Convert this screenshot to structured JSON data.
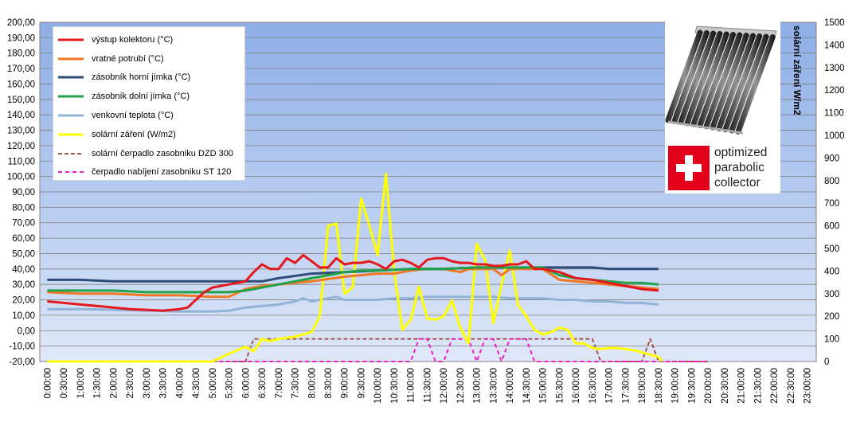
{
  "chart_data": {
    "type": "line",
    "y_axis_left": {
      "ylim": [
        -20,
        200
      ],
      "tick_labels": [
        "200,00",
        "190,00",
        "180,00",
        "170,00",
        "160,00",
        "150,00",
        "140,00",
        "130,00",
        "120,00",
        "110,00",
        "100,00",
        "90,00",
        "80,00",
        "70,00",
        "60,00",
        "50,00",
        "40,00",
        "30,00",
        "20,00",
        "10,00",
        "0,00",
        "-10,00",
        "-20,00"
      ]
    },
    "y_axis_right": {
      "ylabel": "solární záření W/m2",
      "ylim": [
        0,
        1500
      ],
      "tick_labels": [
        "1500",
        "1400",
        "1300",
        "1200",
        "1100",
        "1000",
        "900",
        "800",
        "700",
        "600",
        "500",
        "400",
        "300",
        "200",
        "100",
        "0"
      ]
    },
    "x_tick_labels": [
      "0:00:00",
      "0:30:00",
      "1:00:00",
      "1:30:00",
      "2:00:00",
      "2:30:00",
      "3:00:00",
      "3:30:00",
      "4:00:00",
      "4:30:00",
      "5:00:00",
      "5:30:00",
      "6:00:00",
      "6:30:00",
      "7:00:00",
      "7:30:00",
      "8:00:00",
      "8:30:00",
      "9:00:00",
      "9:30:00",
      "10:00:00",
      "10:30:00",
      "11:00:00",
      "11:30:00",
      "12:00:00",
      "12:30:00",
      "13:00:00",
      "13:30:00",
      "14:00:00",
      "14:30:00",
      "15:00:00",
      "15:30:00",
      "16:00:00",
      "16:30:00",
      "17:00:00",
      "17:30:00",
      "18:00:00",
      "18:30:00",
      "19:00:00",
      "19:30:00",
      "20:00:00",
      "20:30:00",
      "21:00:00",
      "21:30:00",
      "22:00:00",
      "22:30:00",
      "23:00:00"
    ],
    "grid": true,
    "legend_position": "top-left",
    "plot_background": "light-blue-gradient",
    "series": [
      {
        "name": "výstup kolektoru (°C)",
        "axis": "left",
        "color": "#e3181c",
        "dash": "solid",
        "points": [
          [
            0,
            19
          ],
          [
            1,
            18
          ],
          [
            2,
            17
          ],
          [
            3,
            16
          ],
          [
            4,
            15
          ],
          [
            5,
            14
          ],
          [
            6,
            13.5
          ],
          [
            7,
            13
          ],
          [
            8,
            14
          ],
          [
            8.5,
            15
          ],
          [
            9,
            20
          ],
          [
            9.5,
            25
          ],
          [
            10,
            28
          ],
          [
            11,
            30
          ],
          [
            12,
            32
          ],
          [
            12.5,
            38
          ],
          [
            13,
            43
          ],
          [
            13.5,
            40
          ],
          [
            14,
            40
          ],
          [
            14.5,
            47
          ],
          [
            15,
            44
          ],
          [
            15.5,
            49
          ],
          [
            16,
            45
          ],
          [
            16.5,
            41
          ],
          [
            17,
            41
          ],
          [
            17.5,
            47
          ],
          [
            18,
            43
          ],
          [
            18.5,
            44
          ],
          [
            19,
            44
          ],
          [
            19.5,
            45
          ],
          [
            20,
            43
          ],
          [
            20.5,
            40
          ],
          [
            21,
            45
          ],
          [
            21.5,
            46
          ],
          [
            22,
            44
          ],
          [
            22.5,
            41
          ],
          [
            23,
            46
          ],
          [
            23.5,
            47
          ],
          [
            24,
            47
          ],
          [
            24.5,
            45
          ],
          [
            25,
            44
          ],
          [
            25.5,
            44
          ],
          [
            26,
            43
          ],
          [
            26.5,
            43
          ],
          [
            27,
            42
          ],
          [
            27.5,
            42
          ],
          [
            28,
            43
          ],
          [
            28.5,
            43
          ],
          [
            29,
            45
          ],
          [
            29.5,
            40
          ],
          [
            30,
            40
          ],
          [
            31,
            38
          ],
          [
            32,
            34
          ],
          [
            33,
            33
          ],
          [
            34,
            31
          ],
          [
            35,
            29
          ],
          [
            36,
            27
          ],
          [
            37,
            26
          ]
        ]
      },
      {
        "name": "vratné potrubí (°C)",
        "axis": "left",
        "color": "#f07822",
        "dash": "solid",
        "points": [
          [
            0,
            25
          ],
          [
            2,
            24
          ],
          [
            4,
            24
          ],
          [
            6,
            23
          ],
          [
            8,
            23
          ],
          [
            10,
            22
          ],
          [
            11,
            22
          ],
          [
            12,
            27
          ],
          [
            13,
            29
          ],
          [
            14,
            30
          ],
          [
            16,
            32
          ],
          [
            18,
            35
          ],
          [
            20,
            37
          ],
          [
            21,
            37
          ],
          [
            22,
            39
          ],
          [
            23,
            40
          ],
          [
            24,
            40
          ],
          [
            25,
            38
          ],
          [
            25.5,
            40
          ],
          [
            26,
            40
          ],
          [
            27,
            40
          ],
          [
            27.5,
            36
          ],
          [
            28,
            40
          ],
          [
            29,
            40
          ],
          [
            30,
            40
          ],
          [
            31,
            33
          ],
          [
            32,
            32
          ],
          [
            33,
            31
          ],
          [
            34,
            30
          ],
          [
            35,
            29
          ],
          [
            36,
            28
          ],
          [
            37,
            27
          ]
        ]
      },
      {
        "name": "zásobník horní jímka (°C)",
        "axis": "left",
        "color": "#2e4c78",
        "dash": "solid",
        "points": [
          [
            0,
            33
          ],
          [
            2,
            33
          ],
          [
            4,
            32
          ],
          [
            6,
            32
          ],
          [
            8,
            32
          ],
          [
            10,
            32
          ],
          [
            11,
            32
          ],
          [
            12,
            32
          ],
          [
            13,
            32
          ],
          [
            14,
            34
          ],
          [
            16,
            37
          ],
          [
            18,
            38
          ],
          [
            20,
            39
          ],
          [
            22,
            40
          ],
          [
            24,
            40
          ],
          [
            26,
            41
          ],
          [
            28,
            41
          ],
          [
            30,
            41
          ],
          [
            32,
            41
          ],
          [
            33,
            41
          ],
          [
            34,
            40
          ],
          [
            35,
            40
          ],
          [
            36,
            40
          ],
          [
            37,
            40
          ]
        ]
      },
      {
        "name": "zásobník dolní jímka (°C)",
        "axis": "left",
        "color": "#21a24a",
        "dash": "solid",
        "points": [
          [
            0,
            26
          ],
          [
            2,
            26
          ],
          [
            4,
            26
          ],
          [
            6,
            25
          ],
          [
            8,
            25
          ],
          [
            10,
            25
          ],
          [
            11,
            25
          ],
          [
            12,
            26
          ],
          [
            13,
            28
          ],
          [
            14,
            30
          ],
          [
            15,
            32
          ],
          [
            16,
            34
          ],
          [
            17,
            36
          ],
          [
            18,
            38
          ],
          [
            19,
            39
          ],
          [
            20,
            39
          ],
          [
            22,
            40
          ],
          [
            24,
            40
          ],
          [
            26,
            41
          ],
          [
            28,
            41
          ],
          [
            30,
            41
          ],
          [
            31,
            36
          ],
          [
            32,
            34
          ],
          [
            33,
            33
          ],
          [
            34,
            32
          ],
          [
            35,
            31
          ],
          [
            36,
            31
          ],
          [
            37,
            30
          ]
        ]
      },
      {
        "name": "venkovní teplota (°C)",
        "axis": "left",
        "color": "#91b3d7",
        "dash": "solid",
        "points": [
          [
            0,
            14
          ],
          [
            2,
            14
          ],
          [
            4,
            13.5
          ],
          [
            6,
            13
          ],
          [
            8,
            12.5
          ],
          [
            10,
            12.5
          ],
          [
            11,
            13
          ],
          [
            12,
            15
          ],
          [
            13,
            16
          ],
          [
            14,
            17
          ],
          [
            15,
            19
          ],
          [
            15.5,
            21
          ],
          [
            16,
            19
          ],
          [
            17,
            21
          ],
          [
            17.5,
            22
          ],
          [
            18,
            20
          ],
          [
            19,
            20
          ],
          [
            20,
            20
          ],
          [
            21,
            21
          ],
          [
            22,
            21
          ],
          [
            23,
            22
          ],
          [
            24,
            22
          ],
          [
            25,
            22
          ],
          [
            26,
            22
          ],
          [
            27,
            22
          ],
          [
            28,
            21
          ],
          [
            29,
            21
          ],
          [
            30,
            21
          ],
          [
            31,
            20
          ],
          [
            32,
            20
          ],
          [
            33,
            19
          ],
          [
            34,
            19
          ],
          [
            35,
            18
          ],
          [
            36,
            18
          ],
          [
            37,
            17
          ]
        ]
      },
      {
        "name": "solární záření (W/m2)",
        "axis": "right",
        "color": "#ffff00",
        "dash": "solid",
        "points": [
          [
            0,
            0
          ],
          [
            10,
            0
          ],
          [
            11,
            35
          ],
          [
            12,
            65
          ],
          [
            12.5,
            45
          ],
          [
            13,
            100
          ],
          [
            13.5,
            90
          ],
          [
            14,
            100
          ],
          [
            15,
            110
          ],
          [
            16,
            130
          ],
          [
            16.5,
            200
          ],
          [
            17,
            600
          ],
          [
            17.5,
            610
          ],
          [
            18,
            300
          ],
          [
            18.5,
            330
          ],
          [
            19,
            720
          ],
          [
            19.5,
            600
          ],
          [
            20,
            470
          ],
          [
            20.5,
            830
          ],
          [
            21,
            400
          ],
          [
            21.5,
            140
          ],
          [
            22,
            185
          ],
          [
            22.5,
            330
          ],
          [
            23,
            190
          ],
          [
            23.5,
            185
          ],
          [
            24,
            200
          ],
          [
            24.5,
            270
          ],
          [
            25,
            150
          ],
          [
            25.5,
            80
          ],
          [
            26,
            520
          ],
          [
            26.5,
            450
          ],
          [
            27,
            170
          ],
          [
            27.5,
            340
          ],
          [
            28,
            490
          ],
          [
            28.5,
            250
          ],
          [
            29,
            200
          ],
          [
            29.5,
            140
          ],
          [
            30,
            120
          ],
          [
            30.5,
            130
          ],
          [
            31,
            150
          ],
          [
            31.5,
            140
          ],
          [
            32,
            80
          ],
          [
            32.5,
            80
          ],
          [
            33,
            60
          ],
          [
            33.5,
            55
          ],
          [
            34,
            60
          ],
          [
            34.5,
            60
          ],
          [
            35,
            55
          ],
          [
            35.5,
            50
          ],
          [
            36,
            40
          ],
          [
            36.5,
            30
          ],
          [
            37,
            20
          ],
          [
            37.2,
            0
          ]
        ]
      },
      {
        "name": "solární čerpadlo zasobniku  DZD 300",
        "axis": "right",
        "color": "#a0524d",
        "dash": "5,3",
        "points": [
          [
            0,
            0
          ],
          [
            12,
            0
          ],
          [
            12.5,
            100
          ],
          [
            33,
            100
          ],
          [
            33.5,
            0
          ],
          [
            36,
            0
          ],
          [
            36.5,
            100
          ],
          [
            37,
            0
          ],
          [
            40,
            0
          ]
        ]
      },
      {
        "name": "čerpadlo nabíjení  zasobniku ST 120",
        "axis": "right",
        "color": "#ee1fc2",
        "dash": "5,4",
        "points": [
          [
            0,
            0
          ],
          [
            22,
            0
          ],
          [
            22.5,
            100
          ],
          [
            23,
            100
          ],
          [
            23.5,
            0
          ],
          [
            24,
            0
          ],
          [
            24.5,
            100
          ],
          [
            25.5,
            100
          ],
          [
            26,
            0
          ],
          [
            26.5,
            100
          ],
          [
            27,
            100
          ],
          [
            27.5,
            0
          ],
          [
            28,
            100
          ],
          [
            29,
            100
          ],
          [
            29.5,
            0
          ],
          [
            40,
            0
          ]
        ]
      }
    ]
  },
  "product_panel": {
    "logo_text_lines": [
      "optimized",
      "parabolic",
      "collector"
    ],
    "image": "solar-vacuum-tube-collector"
  }
}
